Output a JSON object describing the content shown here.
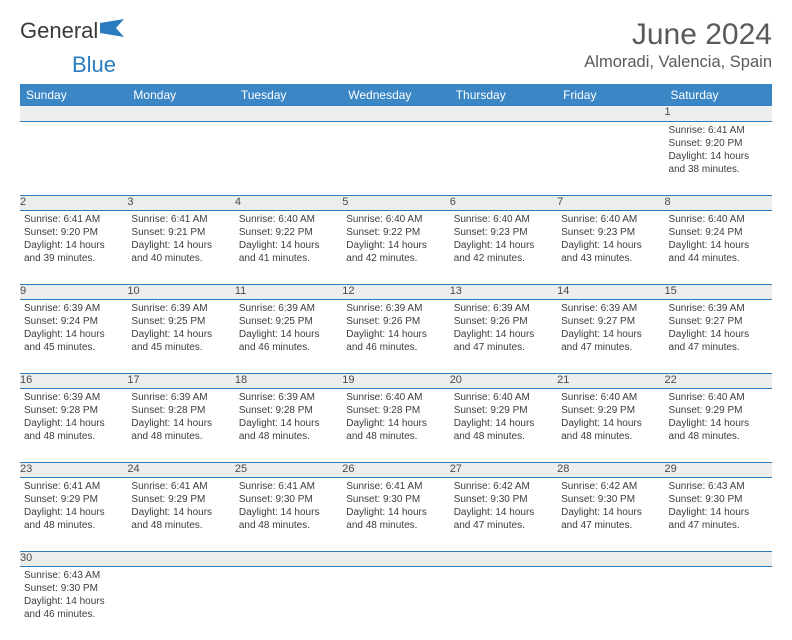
{
  "brand": {
    "part1": "General",
    "part2": "Blue"
  },
  "title": "June 2024",
  "location": "Almoradi, Valencia, Spain",
  "colors": {
    "header_bg": "#3b86c5",
    "header_fg": "#ffffff",
    "daynum_bg": "#eceded",
    "rule": "#2b7bbf",
    "text": "#3d3d3d",
    "title": "#5a5a5a"
  },
  "weekdays": [
    "Sunday",
    "Monday",
    "Tuesday",
    "Wednesday",
    "Thursday",
    "Friday",
    "Saturday"
  ],
  "days": [
    {
      "n": 1,
      "sr": "6:41 AM",
      "ss": "9:20 PM",
      "dlh": 14,
      "dlm": 38
    },
    {
      "n": 2,
      "sr": "6:41 AM",
      "ss": "9:20 PM",
      "dlh": 14,
      "dlm": 39
    },
    {
      "n": 3,
      "sr": "6:41 AM",
      "ss": "9:21 PM",
      "dlh": 14,
      "dlm": 40
    },
    {
      "n": 4,
      "sr": "6:40 AM",
      "ss": "9:22 PM",
      "dlh": 14,
      "dlm": 41
    },
    {
      "n": 5,
      "sr": "6:40 AM",
      "ss": "9:22 PM",
      "dlh": 14,
      "dlm": 42
    },
    {
      "n": 6,
      "sr": "6:40 AM",
      "ss": "9:23 PM",
      "dlh": 14,
      "dlm": 42
    },
    {
      "n": 7,
      "sr": "6:40 AM",
      "ss": "9:23 PM",
      "dlh": 14,
      "dlm": 43
    },
    {
      "n": 8,
      "sr": "6:40 AM",
      "ss": "9:24 PM",
      "dlh": 14,
      "dlm": 44
    },
    {
      "n": 9,
      "sr": "6:39 AM",
      "ss": "9:24 PM",
      "dlh": 14,
      "dlm": 45
    },
    {
      "n": 10,
      "sr": "6:39 AM",
      "ss": "9:25 PM",
      "dlh": 14,
      "dlm": 45
    },
    {
      "n": 11,
      "sr": "6:39 AM",
      "ss": "9:25 PM",
      "dlh": 14,
      "dlm": 46
    },
    {
      "n": 12,
      "sr": "6:39 AM",
      "ss": "9:26 PM",
      "dlh": 14,
      "dlm": 46
    },
    {
      "n": 13,
      "sr": "6:39 AM",
      "ss": "9:26 PM",
      "dlh": 14,
      "dlm": 47
    },
    {
      "n": 14,
      "sr": "6:39 AM",
      "ss": "9:27 PM",
      "dlh": 14,
      "dlm": 47
    },
    {
      "n": 15,
      "sr": "6:39 AM",
      "ss": "9:27 PM",
      "dlh": 14,
      "dlm": 47
    },
    {
      "n": 16,
      "sr": "6:39 AM",
      "ss": "9:28 PM",
      "dlh": 14,
      "dlm": 48
    },
    {
      "n": 17,
      "sr": "6:39 AM",
      "ss": "9:28 PM",
      "dlh": 14,
      "dlm": 48
    },
    {
      "n": 18,
      "sr": "6:39 AM",
      "ss": "9:28 PM",
      "dlh": 14,
      "dlm": 48
    },
    {
      "n": 19,
      "sr": "6:40 AM",
      "ss": "9:28 PM",
      "dlh": 14,
      "dlm": 48
    },
    {
      "n": 20,
      "sr": "6:40 AM",
      "ss": "9:29 PM",
      "dlh": 14,
      "dlm": 48
    },
    {
      "n": 21,
      "sr": "6:40 AM",
      "ss": "9:29 PM",
      "dlh": 14,
      "dlm": 48
    },
    {
      "n": 22,
      "sr": "6:40 AM",
      "ss": "9:29 PM",
      "dlh": 14,
      "dlm": 48
    },
    {
      "n": 23,
      "sr": "6:41 AM",
      "ss": "9:29 PM",
      "dlh": 14,
      "dlm": 48
    },
    {
      "n": 24,
      "sr": "6:41 AM",
      "ss": "9:29 PM",
      "dlh": 14,
      "dlm": 48
    },
    {
      "n": 25,
      "sr": "6:41 AM",
      "ss": "9:30 PM",
      "dlh": 14,
      "dlm": 48
    },
    {
      "n": 26,
      "sr": "6:41 AM",
      "ss": "9:30 PM",
      "dlh": 14,
      "dlm": 48
    },
    {
      "n": 27,
      "sr": "6:42 AM",
      "ss": "9:30 PM",
      "dlh": 14,
      "dlm": 47
    },
    {
      "n": 28,
      "sr": "6:42 AM",
      "ss": "9:30 PM",
      "dlh": 14,
      "dlm": 47
    },
    {
      "n": 29,
      "sr": "6:43 AM",
      "ss": "9:30 PM",
      "dlh": 14,
      "dlm": 47
    },
    {
      "n": 30,
      "sr": "6:43 AM",
      "ss": "9:30 PM",
      "dlh": 14,
      "dlm": 46
    }
  ],
  "labels": {
    "sunrise": "Sunrise:",
    "sunset": "Sunset:",
    "daylight_prefix": "Daylight:",
    "hours_word": "hours",
    "and_word": "and",
    "minutes_word": "minutes."
  },
  "start_weekday_index": 6
}
